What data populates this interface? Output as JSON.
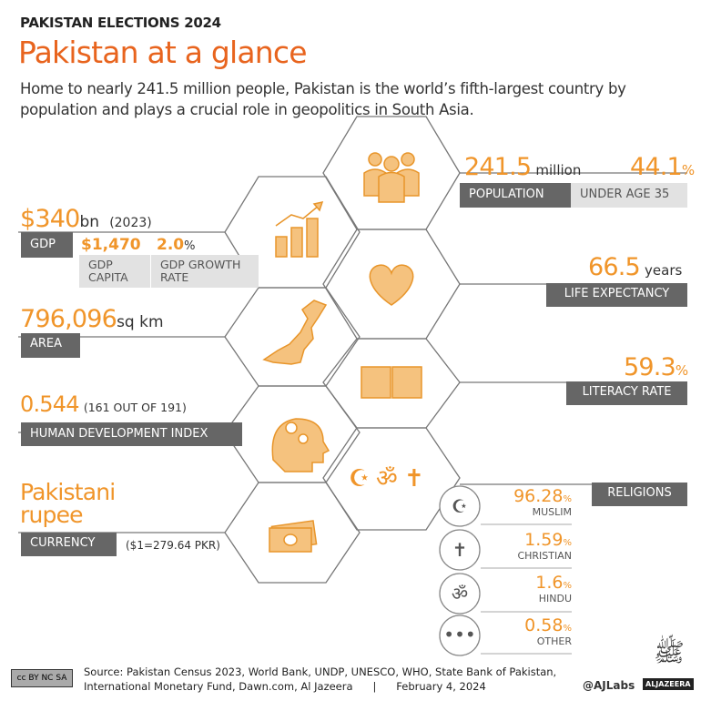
{
  "header": {
    "kicker": "PAKISTAN ELECTIONS 2024",
    "title": "Pakistan at a glance",
    "subtitle": "Home to nearly 241.5 million people, Pakistan is the world’s fifth-largest country by population and plays a crucial role in geopolitics in South Asia."
  },
  "population": {
    "value": "241.5",
    "unit": "million",
    "label": "POPULATION",
    "under35_value": "44.1",
    "under35_unit": "%",
    "under35_label": "UNDER AGE 35",
    "icon": "people-icon"
  },
  "gdp": {
    "value": "$340",
    "unit": "bn",
    "year": "(2023)",
    "label": "GDP",
    "per_capita_value": "$1,470",
    "per_capita_label": "GDP CAPITA",
    "growth_value": "2.0",
    "growth_unit": "%",
    "growth_label": "GDP GROWTH RATE",
    "icon": "bar-chart-icon"
  },
  "life": {
    "value": "66.5",
    "unit": "years",
    "label": "LIFE EXPECTANCY",
    "icon": "heart-icon"
  },
  "area": {
    "value": "796,096",
    "unit": "sq km",
    "label": "AREA",
    "icon": "pakistan-map-icon"
  },
  "literacy": {
    "value": "59.3",
    "unit": "%",
    "label": "LITERACY RATE",
    "icon": "book-icon"
  },
  "hdi": {
    "value": "0.544",
    "rank": "(161 OUT OF 191)",
    "label": "HUMAN DEVELOPMENT INDEX",
    "icon": "head-gears-icon"
  },
  "currency": {
    "value": "Pakistani rupee",
    "label": "CURRENCY",
    "rate": "($1=279.64 PKR)",
    "icon": "banknotes-icon"
  },
  "religions": {
    "label": "RELIGIONS",
    "items": [
      {
        "value": "96.28",
        "unit": "%",
        "name": "MUSLIM",
        "icon": "crescent-star-icon"
      },
      {
        "value": "1.59",
        "unit": "%",
        "name": "CHRISTIAN",
        "icon": "cross-icon"
      },
      {
        "value": "1.6",
        "unit": "%",
        "name": "HINDU",
        "icon": "om-icon"
      },
      {
        "value": "0.58",
        "unit": "%",
        "name": "OTHER",
        "icon": "ellipsis-icon"
      }
    ]
  },
  "footer": {
    "source_line1": "Source: Pakistan Census 2023, World Bank, UNDP, UNESCO, WHO, State Bank of Pakistan,",
    "source_line2": "International Monetary Fund, Dawn.com, Al Jazeera",
    "separator": "|",
    "date": "February 4, 2024",
    "handle": "@AJLabs",
    "brand": "ALJAZEERA",
    "license": "cc BY NC SA"
  },
  "colors": {
    "accent": "#f0952a",
    "title": "#e8641e",
    "label": "#666666"
  }
}
